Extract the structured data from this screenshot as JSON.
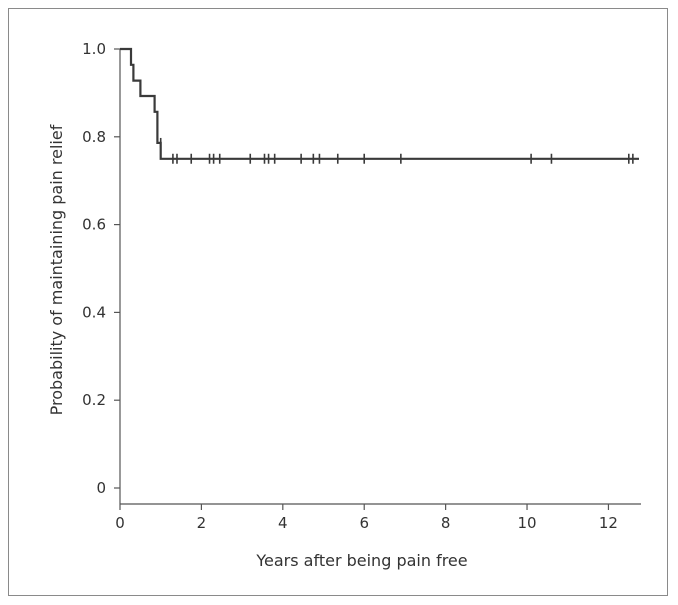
{
  "chart_data": {
    "type": "line",
    "title": "",
    "xlabel": "Years after being pain free",
    "ylabel": "Probability of maintaining pain relief",
    "xlim": [
      0,
      12.8
    ],
    "ylim": [
      0,
      1.0
    ],
    "x_ticks": [
      0,
      2,
      4,
      6,
      8,
      10,
      12
    ],
    "y_ticks": [
      0,
      0.2,
      0.4,
      0.6,
      0.8,
      1.0
    ],
    "x_tick_labels": [
      "0",
      "2",
      "4",
      "6",
      "8",
      "10",
      "12"
    ],
    "y_tick_labels": [
      "0",
      "0.2",
      "0.4",
      "0.6",
      "0.8",
      "1.0"
    ],
    "grid": false,
    "line_color": "#3a3a3a",
    "series": [
      {
        "step_points": [
          [
            0,
            1.0
          ],
          [
            0.27,
            1.0
          ],
          [
            0.27,
            0.964
          ],
          [
            0.33,
            0.964
          ],
          [
            0.33,
            0.928
          ],
          [
            0.5,
            0.928
          ],
          [
            0.5,
            0.893
          ],
          [
            0.85,
            0.893
          ],
          [
            0.85,
            0.857
          ],
          [
            0.92,
            0.857
          ],
          [
            0.92,
            0.786
          ],
          [
            1.0,
            0.786
          ],
          [
            1.0,
            0.75
          ],
          [
            12.75,
            0.75
          ]
        ],
        "censor_marks": [
          [
            1.0,
            0.786
          ],
          [
            1.3,
            0.75
          ],
          [
            1.4,
            0.75
          ],
          [
            1.75,
            0.75
          ],
          [
            2.2,
            0.75
          ],
          [
            2.3,
            0.75
          ],
          [
            2.45,
            0.75
          ],
          [
            3.2,
            0.75
          ],
          [
            3.55,
            0.75
          ],
          [
            3.65,
            0.75
          ],
          [
            3.8,
            0.75
          ],
          [
            4.45,
            0.75
          ],
          [
            4.75,
            0.75
          ],
          [
            4.9,
            0.75
          ],
          [
            5.35,
            0.75
          ],
          [
            6.0,
            0.75
          ],
          [
            6.9,
            0.75
          ],
          [
            10.1,
            0.75
          ],
          [
            10.6,
            0.75
          ],
          [
            12.5,
            0.75
          ],
          [
            12.6,
            0.75
          ]
        ]
      }
    ]
  }
}
